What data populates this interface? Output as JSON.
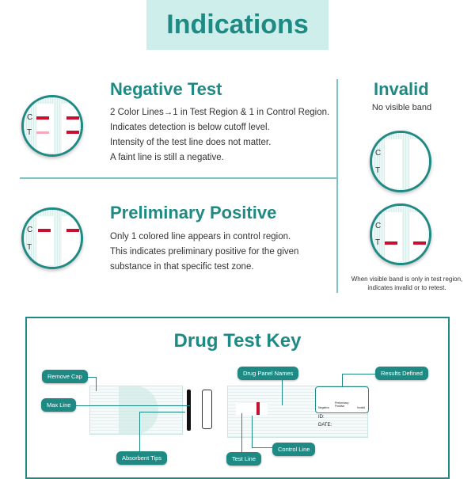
{
  "header": {
    "title": "Indications"
  },
  "negative": {
    "title": "Negative Test",
    "lines": [
      "2 Color Lines→1 in Test Region & 1 in Control Region.",
      "Indicates detection is below cutoff level.",
      "Intensity of the test line does not matter.",
      "A faint line is still a negative."
    ]
  },
  "positive": {
    "title": "Preliminary Positive",
    "lines": [
      "Only 1 colored line appears in control region.",
      "This indicates preliminary positive for the given",
      "substance in that specific test zone."
    ]
  },
  "invalid": {
    "title": "Invalid",
    "subtitle": "No visible band",
    "note": [
      "When visible band is only in test region,",
      "indicates invalid or to retest."
    ]
  },
  "strip_labels": {
    "c": "C",
    "t": "T"
  },
  "key": {
    "title": "Drug Test Key",
    "labels": {
      "remove_cap": "Remove Cap",
      "max_line": "Max Line",
      "absorbent_tips": "Absorbent Tips",
      "drug_panel_names": "Drug Panel Names",
      "results_defined": "Results Defined",
      "test_line": "Test Line",
      "control_line": "Control Line"
    },
    "card": {
      "id": "ID:",
      "date": "DATE:",
      "negative": "Negative",
      "positive": "Preliminary Positive",
      "invalid": "Invalid"
    }
  },
  "colors": {
    "accent": "#1f8a84",
    "line": "#c8102e"
  }
}
